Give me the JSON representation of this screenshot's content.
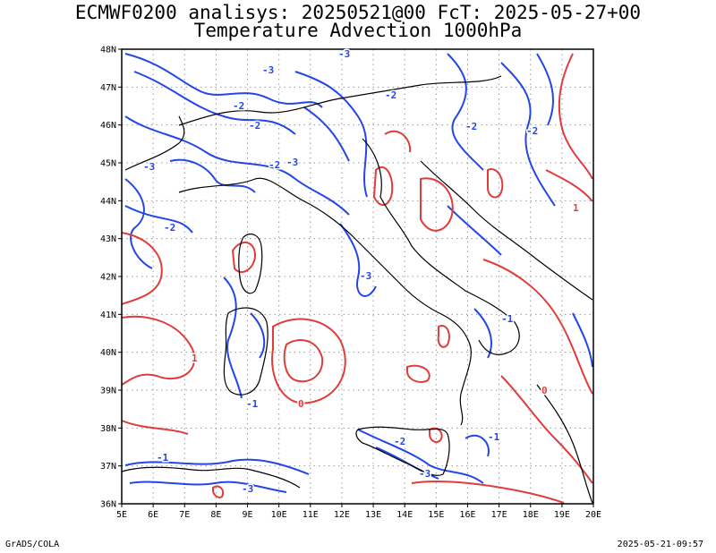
{
  "title_line1": "ECMWF0200 analisys: 20250521@00 FcT: 2025-05-27+00",
  "title_line2": "Temperature Advection 1000hPa",
  "footer_left": "GrADS/COLA",
  "footer_right": "2025-05-21-09:57",
  "lat_labels": [
    "48N",
    "47N",
    "46N",
    "45N",
    "44N",
    "43N",
    "42N",
    "41N",
    "40N",
    "39N",
    "38N",
    "37N",
    "36N"
  ],
  "lon_labels": [
    "5E",
    "6E",
    "7E",
    "8E",
    "9E",
    "10E",
    "11E",
    "12E",
    "13E",
    "14E",
    "15E",
    "16E",
    "17E",
    "18E",
    "19E",
    "20E"
  ],
  "contour_labels": [
    "-3",
    "-2",
    "-1",
    "0",
    "1"
  ],
  "colors": {
    "positive": "#e03c3c",
    "negative": "#2346e6",
    "coast": "#000000",
    "grid": "#9a9a9a"
  }
}
